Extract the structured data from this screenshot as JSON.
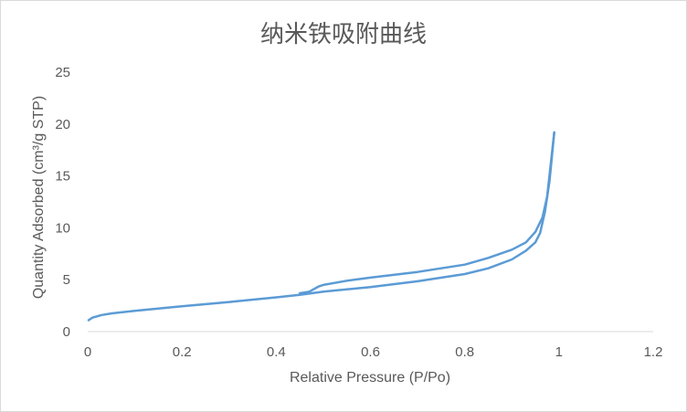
{
  "chart_data": {
    "type": "line",
    "title": "纳米铁吸附曲线",
    "xlabel": "Relative Pressure (P/Po)",
    "ylabel": "Quantity Adsorbed (cm³/g STP)",
    "xlim": [
      0,
      1.2
    ],
    "ylim": [
      0,
      25
    ],
    "x_ticks": [
      "0",
      "0.2",
      "0.4",
      "0.6",
      "0.8",
      "1",
      "1.2"
    ],
    "y_ticks": [
      "0",
      "5",
      "10",
      "15",
      "20",
      "25"
    ],
    "grid": "none",
    "legend": "none",
    "colors": {
      "series": "#5b9bd5",
      "text": "#595959",
      "axis": "#d9d9d9"
    },
    "series": [
      {
        "points": [
          [
            0.002,
            1.1
          ],
          [
            0.01,
            1.35
          ],
          [
            0.03,
            1.6
          ],
          [
            0.05,
            1.75
          ],
          [
            0.1,
            2.0
          ],
          [
            0.2,
            2.45
          ],
          [
            0.3,
            2.85
          ],
          [
            0.4,
            3.3
          ],
          [
            0.45,
            3.55
          ],
          [
            0.5,
            3.85
          ],
          [
            0.6,
            4.3
          ],
          [
            0.7,
            4.85
          ],
          [
            0.8,
            5.55
          ],
          [
            0.85,
            6.1
          ],
          [
            0.9,
            6.95
          ],
          [
            0.93,
            7.8
          ],
          [
            0.95,
            8.6
          ],
          [
            0.96,
            9.5
          ],
          [
            0.97,
            11.5
          ],
          [
            0.98,
            14.5
          ],
          [
            0.99,
            19.2
          ]
        ]
      },
      {
        "points": [
          [
            0.99,
            19.2
          ],
          [
            0.975,
            13.0
          ],
          [
            0.965,
            11.0
          ],
          [
            0.95,
            9.6
          ],
          [
            0.93,
            8.6
          ],
          [
            0.9,
            7.9
          ],
          [
            0.85,
            7.1
          ],
          [
            0.8,
            6.45
          ],
          [
            0.7,
            5.75
          ],
          [
            0.6,
            5.2
          ],
          [
            0.55,
            4.9
          ],
          [
            0.5,
            4.5
          ],
          [
            0.49,
            4.35
          ],
          [
            0.47,
            3.85
          ],
          [
            0.45,
            3.7
          ]
        ]
      }
    ]
  }
}
